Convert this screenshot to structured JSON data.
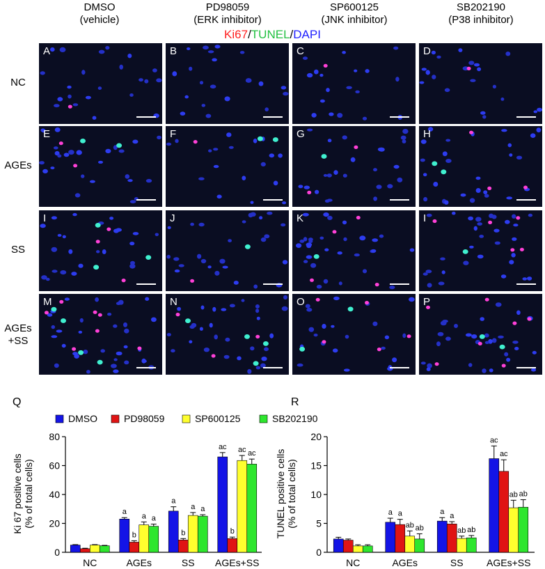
{
  "figure": {
    "column_headers": [
      {
        "name": "DMSO",
        "sub": "(vehicle)"
      },
      {
        "name": "PD98059",
        "sub": "(ERK inhibitor)"
      },
      {
        "name": "SP600125",
        "sub": "(JNK inhibitor)"
      },
      {
        "name": "SB202190",
        "sub": "(P38 inhibitor)"
      }
    ],
    "stain": {
      "ki67": "Ki67",
      "tunel": "TUNEL",
      "dapi": "DAPI",
      "sep": "/"
    },
    "row_labels": [
      "NC",
      "AGEs",
      "SS",
      "AGEs\n+SS"
    ],
    "panel_letters": [
      "A",
      "B",
      "C",
      "D",
      "E",
      "F",
      "G",
      "H",
      "I",
      "J",
      "K",
      "I",
      "M",
      "N",
      "O",
      "P"
    ],
    "colors": {
      "ki67": "#ff2020",
      "tunel": "#20e040",
      "dapi": "#2020ff"
    }
  },
  "legend": [
    {
      "label": "DMSO",
      "color": "#1414e6"
    },
    {
      "label": "PD98059",
      "color": "#e01414"
    },
    {
      "label": "SP600125",
      "color": "#ffff2e"
    },
    {
      "label": "SB202190",
      "color": "#2ee62e"
    }
  ],
  "chart_data": [
    {
      "panel": "Q",
      "type": "bar",
      "ylabel": "Ki 67 positive cells\n(% of total cells)",
      "ylim": [
        0,
        80
      ],
      "yticks": [
        0,
        20,
        40,
        60,
        80
      ],
      "categories": [
        "NC",
        "AGEs",
        "SS",
        "AGEs+SS"
      ],
      "series": [
        {
          "name": "DMSO",
          "values": [
            5,
            23,
            28.5,
            66
          ],
          "errors": [
            0.3,
            1,
            3,
            3
          ],
          "annotations": [
            "",
            "a",
            "a",
            "ac"
          ]
        },
        {
          "name": "PD98059",
          "values": [
            2.5,
            7,
            8.5,
            9.5
          ],
          "errors": [
            0.3,
            1,
            1,
            1
          ],
          "annotations": [
            "",
            "b",
            "b",
            "b"
          ]
        },
        {
          "name": "SP600125",
          "values": [
            5,
            19,
            25.5,
            63.5
          ],
          "errors": [
            0.3,
            2,
            2,
            3.5
          ],
          "annotations": [
            "",
            "a",
            "a",
            "ac"
          ]
        },
        {
          "name": "SB202190",
          "values": [
            4.5,
            18,
            25,
            61
          ],
          "errors": [
            0.3,
            1.5,
            1,
            3.5
          ],
          "annotations": [
            "",
            "a",
            "a",
            "ac"
          ]
        }
      ]
    },
    {
      "panel": "R",
      "type": "bar",
      "ylabel": "TUNEL positive cells\n(% of total cells)",
      "ylim": [
        0,
        20
      ],
      "yticks": [
        0,
        5,
        10,
        15,
        20
      ],
      "categories": [
        "NC",
        "AGEs",
        "SS",
        "AGEs+SS"
      ],
      "series": [
        {
          "name": "DMSO",
          "values": [
            2.3,
            5.2,
            5.4,
            16.2
          ],
          "errors": [
            0.3,
            0.7,
            0.6,
            2.2
          ],
          "annotations": [
            "",
            "a",
            "a",
            "ac"
          ]
        },
        {
          "name": "PD98059",
          "values": [
            2.1,
            4.8,
            4.9,
            14.0
          ],
          "errors": [
            0.2,
            0.9,
            0.4,
            2.0
          ],
          "annotations": [
            "",
            "a",
            "a",
            "ac"
          ]
        },
        {
          "name": "SP600125",
          "values": [
            1.1,
            2.8,
            2.4,
            7.7
          ],
          "errors": [
            0.2,
            0.9,
            0.4,
            1.3
          ],
          "annotations": [
            "",
            "ab",
            "ab",
            "ab"
          ]
        },
        {
          "name": "SB202190",
          "values": [
            1.1,
            2.3,
            2.5,
            7.8
          ],
          "errors": [
            0.2,
            0.9,
            0.4,
            1.3
          ],
          "annotations": [
            "",
            "ab",
            "ab",
            "ab"
          ]
        }
      ]
    }
  ]
}
